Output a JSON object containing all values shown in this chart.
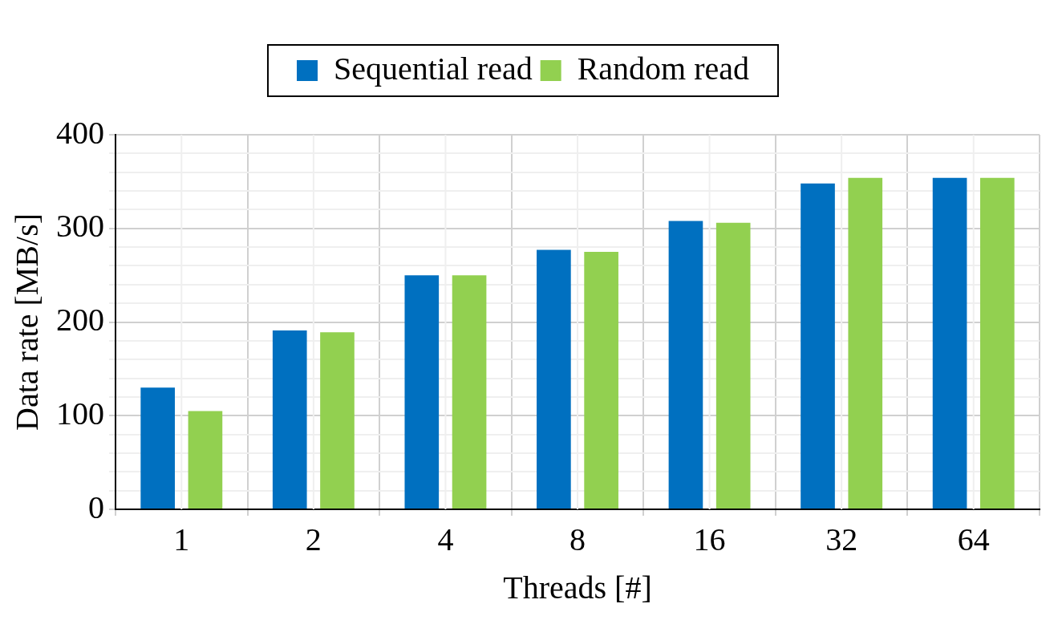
{
  "chart_data": {
    "type": "bar",
    "xlabel": "Threads [#]",
    "ylabel": "Data rate [MB/s]",
    "categories": [
      "1",
      "2",
      "4",
      "8",
      "16",
      "32",
      "64"
    ],
    "series": [
      {
        "name": "Sequential read",
        "color": "#0070c0",
        "values": [
          130,
          191,
          250,
          277,
          308,
          348,
          354
        ]
      },
      {
        "name": "Random read",
        "color": "#92d050",
        "values": [
          105,
          189,
          250,
          275,
          306,
          354,
          354
        ]
      }
    ],
    "ylim": [
      0,
      400
    ],
    "yticks": [
      0,
      {
        "value": 20,
        "label": null
      },
      {
        "value": 40,
        "label": null
      },
      {
        "value": 60,
        "label": null
      },
      {
        "value": 80,
        "label": null
      },
      100,
      {
        "value": 120,
        "label": null
      },
      {
        "value": 140,
        "label": null
      },
      {
        "value": 160,
        "label": null
      },
      {
        "value": 180,
        "label": null
      },
      200,
      {
        "value": 220,
        "label": null
      },
      {
        "value": 240,
        "label": null
      },
      {
        "value": 260,
        "label": null
      },
      {
        "value": 280,
        "label": null
      },
      300,
      {
        "value": 320,
        "label": null
      },
      {
        "value": 340,
        "label": null
      },
      {
        "value": 360,
        "label": null
      },
      {
        "value": 380,
        "label": null
      },
      400
    ],
    "grid": true,
    "legend": "top"
  }
}
